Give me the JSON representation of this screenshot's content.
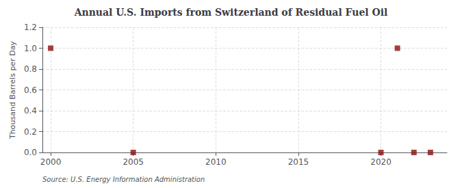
{
  "chart_data": {
    "type": "scatter",
    "title": "Annual U.S. Imports from Switzerland of Residual Fuel Oil",
    "ylabel": "Thousand Barrels per Day",
    "annotation": "Source: U.S. Energy Information Administration",
    "x": [
      2000,
      2005,
      2020,
      2021,
      2022,
      2023
    ],
    "values": [
      1.0,
      0.0,
      0.0,
      1.0,
      0.0,
      0.0
    ],
    "color": "#8b1010",
    "marker": "square",
    "xlim": [
      1999.5,
      2024.0
    ],
    "xticks": [
      2000,
      2005,
      2010,
      2015,
      2020
    ],
    "ylim": [
      0.0,
      1.2
    ],
    "yticks": [
      {
        "value": 0.0,
        "label": "0.0"
      },
      0.2,
      0.4,
      0.6,
      0.8,
      {
        "value": 1.0,
        "label": "1.0"
      },
      1.2
    ],
    "grid": true
  }
}
